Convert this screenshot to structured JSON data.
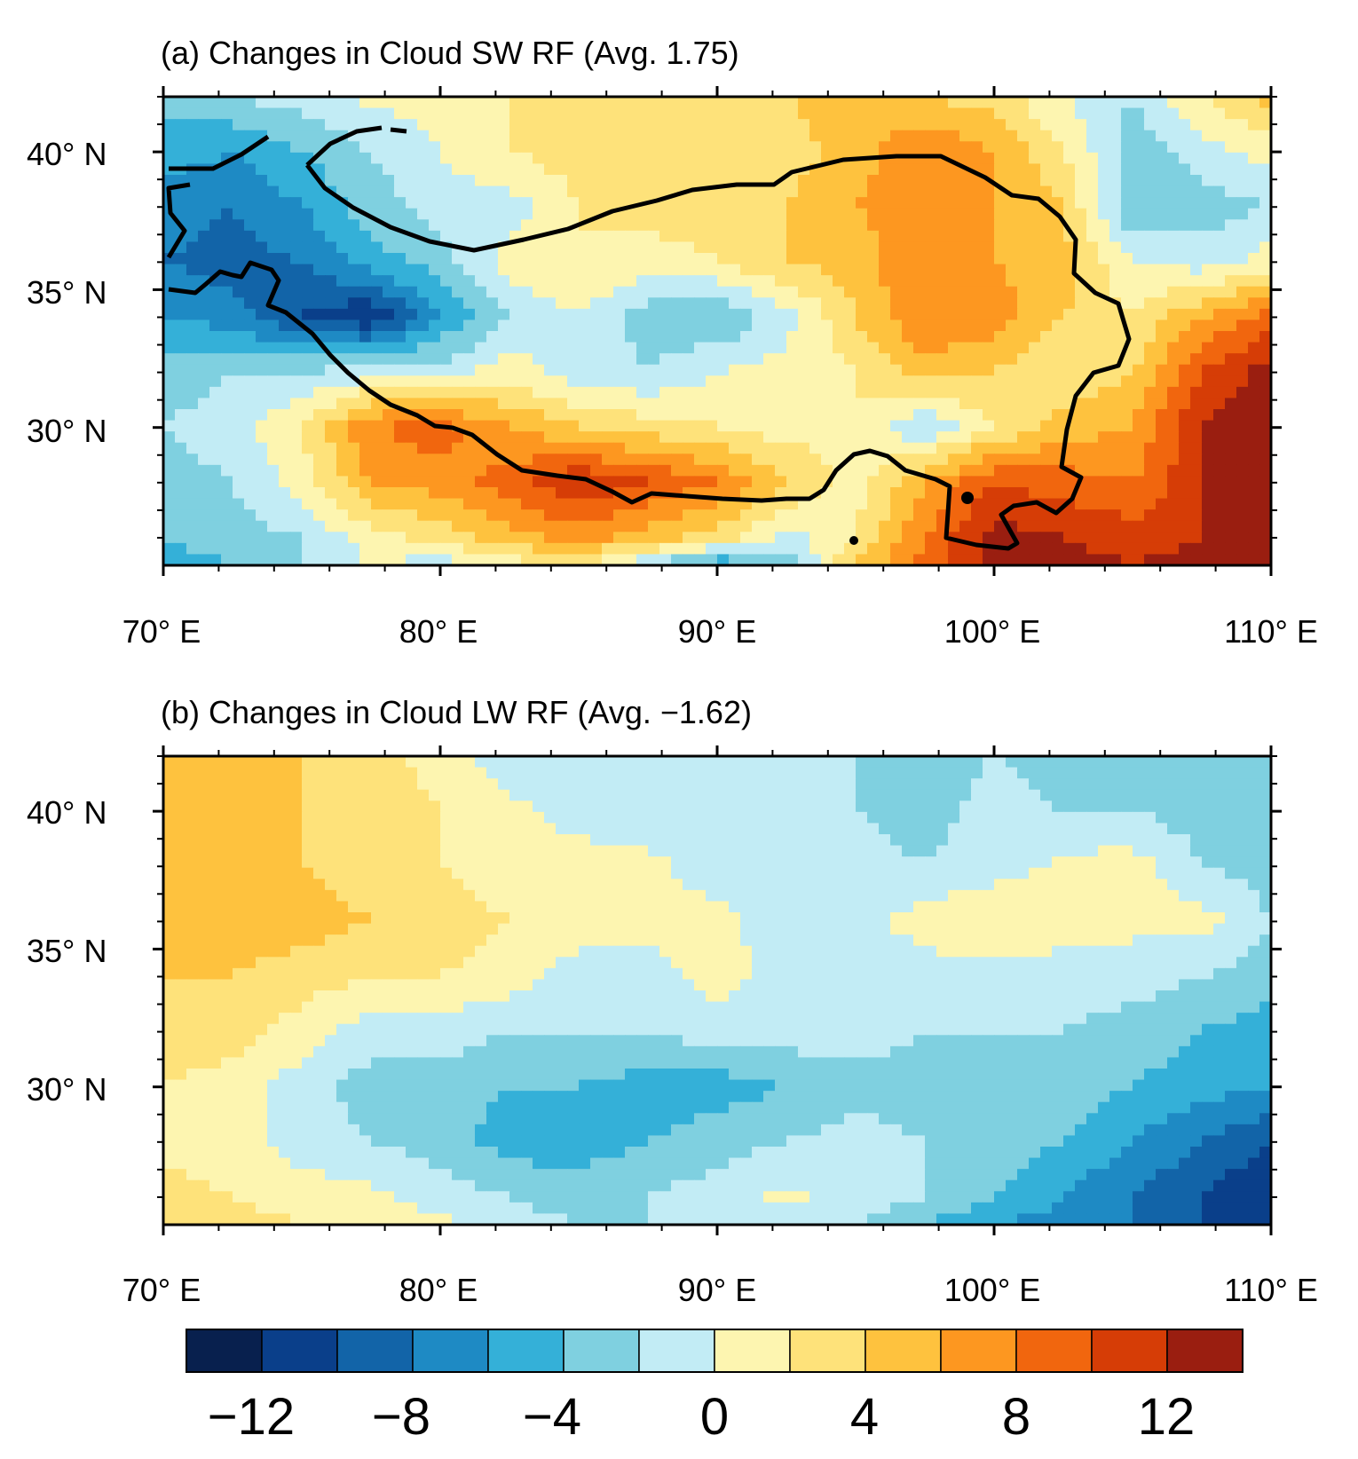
{
  "chart_data": [
    {
      "type": "heatmap",
      "title": "(a) Changes in Cloud SW RF (Avg. 1.75)",
      "average": 1.75,
      "x_ticks": [
        "70° E",
        "80° E",
        "90° E",
        "100° E",
        "110° E"
      ],
      "y_ticks": [
        "40° N",
        "35° N",
        "30° N"
      ],
      "xlim": [
        70,
        110
      ],
      "ylim": [
        25,
        42
      ],
      "lon": [
        70,
        72.5,
        75,
        77.5,
        80,
        82.5,
        85,
        87.5,
        90,
        92.5,
        95,
        97.5,
        100,
        102.5,
        105,
        107.5,
        110
      ],
      "lat": [
        42,
        40,
        38,
        36,
        34,
        32,
        30,
        28,
        26,
        25
      ],
      "values": [
        [
          -3,
          -2,
          -1,
          0.5,
          1,
          2,
          2,
          3,
          4,
          4,
          5,
          4,
          3,
          0,
          -2,
          2,
          5
        ],
        [
          -5,
          -6,
          -4,
          -2,
          0,
          2,
          3,
          2,
          2,
          3,
          5,
          8,
          6,
          2,
          -3,
          -1,
          1
        ],
        [
          -7,
          -8,
          -6,
          -3,
          -1,
          -1,
          2,
          3,
          3,
          4,
          6,
          7,
          6,
          4,
          -4,
          -3,
          -2
        ],
        [
          -8,
          -9,
          -8,
          -5,
          -3,
          1,
          2,
          1,
          2,
          4,
          5,
          8,
          6,
          5,
          0,
          -1,
          1
        ],
        [
          -6,
          -7,
          -10,
          -12,
          -6,
          -2,
          0,
          -3,
          -4,
          -1,
          4,
          8,
          7,
          4,
          2,
          6,
          9
        ],
        [
          -3,
          -2,
          -2,
          -1,
          -1,
          1,
          -1,
          -2,
          0,
          1,
          2,
          5,
          4,
          2,
          4,
          10,
          13
        ],
        [
          -2,
          -1,
          2,
          8,
          9,
          6,
          4,
          3,
          2,
          1,
          2,
          -2,
          2,
          5,
          6,
          12,
          14
        ],
        [
          -3,
          -2,
          1,
          6,
          7,
          9,
          12,
          10,
          8,
          4,
          1,
          6,
          10,
          9,
          8,
          12,
          14
        ],
        [
          -4,
          -3,
          -2,
          1,
          3,
          5,
          7,
          5,
          3,
          -1,
          2,
          8,
          13,
          12,
          11,
          12,
          14
        ],
        [
          -5,
          -4,
          -2,
          0,
          -1,
          1,
          2,
          -2,
          -6,
          -3,
          4,
          9,
          13,
          13,
          12,
          13,
          14
        ]
      ]
    },
    {
      "type": "heatmap",
      "title": "(b) Changes in Cloud LW RF (Avg. −1.62)",
      "average": -1.62,
      "x_ticks": [
        "70° E",
        "80° E",
        "90° E",
        "100° E",
        "110° E"
      ],
      "y_ticks": [
        "40° N",
        "35° N",
        "30° N"
      ],
      "xlim": [
        70,
        110
      ],
      "ylim": [
        25,
        42
      ],
      "lon": [
        70,
        72.5,
        75,
        77.5,
        80,
        82.5,
        85,
        87.5,
        90,
        92.5,
        95,
        97.5,
        100,
        102.5,
        105,
        107.5,
        110
      ],
      "lat": [
        42,
        40,
        38,
        36,
        34,
        32,
        30,
        28,
        26,
        25
      ],
      "values": [
        [
          4,
          5,
          4,
          3,
          1,
          -1,
          -2,
          -2,
          -1,
          -2,
          -2,
          -3,
          -2,
          -3,
          -2,
          -3,
          -4
        ],
        [
          5,
          5,
          4,
          3,
          2,
          0.5,
          -1,
          -1,
          -2,
          -1,
          -2,
          -3,
          -1,
          -2,
          -2,
          -3,
          -4
        ],
        [
          6,
          6,
          4,
          3,
          2,
          1,
          1,
          0.5,
          -1,
          -1,
          -1,
          -2,
          -1,
          0.5,
          1,
          -2,
          -3
        ],
        [
          6,
          5,
          5,
          4,
          3,
          2,
          1,
          1,
          0.5,
          -1,
          -1,
          1,
          2,
          1,
          0.5,
          1,
          -2
        ],
        [
          4,
          4,
          3,
          2,
          2,
          1,
          -1,
          -1,
          1,
          -1,
          -1,
          -1,
          -1,
          -1,
          -1,
          -2,
          -3
        ],
        [
          3,
          3,
          1,
          -1,
          -1,
          -2,
          -2,
          -2,
          -1,
          -1,
          -1,
          -2,
          -2,
          -2,
          -3,
          -4,
          -5
        ],
        [
          2,
          1,
          -1,
          -3,
          -3,
          -4,
          -4,
          -5,
          -5,
          -4,
          -3,
          -3,
          -2,
          -3,
          -4,
          -5,
          -6
        ],
        [
          1,
          1,
          -1,
          -2,
          -3,
          -5,
          -5,
          -4,
          -3,
          -2,
          -1,
          -2,
          -3,
          -4,
          -6,
          -8,
          -10
        ],
        [
          3,
          2,
          1,
          0.5,
          -1,
          -2,
          -3,
          -2,
          -1,
          0.5,
          -1,
          -2,
          -4,
          -6,
          -8,
          -10,
          -12
        ],
        [
          4,
          3,
          2,
          1,
          0.5,
          -1,
          -2,
          -2,
          -1,
          -1,
          -2,
          -4,
          -6,
          -7,
          -8,
          -10,
          -11
        ]
      ]
    }
  ],
  "colorbar": {
    "levels": [
      -14,
      -12,
      -10,
      -8,
      -6,
      -4,
      -2,
      0,
      2,
      4,
      6,
      8,
      10,
      12,
      14
    ],
    "colors": [
      "#08204e",
      "#0a3f8a",
      "#1264a8",
      "#1e8ac4",
      "#34b0d8",
      "#7fd0e0",
      "#c2ecf5",
      "#fdf5b0",
      "#fee27a",
      "#fec23e",
      "#fd9720",
      "#f1660e",
      "#d63d06",
      "#9a1e10"
    ],
    "tick_labels": [
      "−12",
      "−8",
      "−4",
      "0",
      "4",
      "8",
      "12"
    ],
    "tick_values": [
      -12,
      -8,
      -4,
      0,
      4,
      8,
      12
    ]
  },
  "border_line_color": "#000000"
}
